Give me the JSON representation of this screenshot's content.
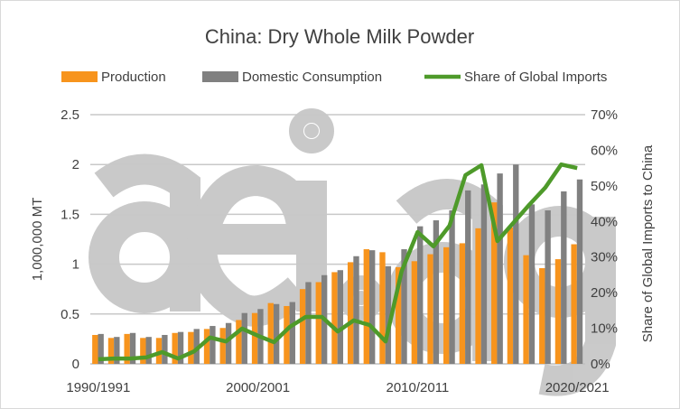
{
  "chart_data": {
    "type": "bar",
    "title": "China: Dry Whole Milk Powder",
    "ylabel": "1,000,000 MT",
    "y2label": "Share of Global Imports to China",
    "ylim": [
      0,
      2.5
    ],
    "y2lim": [
      0,
      0.7
    ],
    "yticks": [
      "0",
      "0.5",
      "1",
      "1.5",
      "2",
      "2.5"
    ],
    "y2ticks": [
      "0%",
      "10%",
      "20%",
      "30%",
      "40%",
      "50%",
      "60%",
      "70%"
    ],
    "xtick_labels": [
      "1990/1991",
      "2000/2001",
      "2010/2011",
      "2020/2021"
    ],
    "grid": true,
    "legend_position": "top",
    "watermark": "aei.ag",
    "categories": [
      "1990/1991",
      "1991/1992",
      "1992/1993",
      "1993/1994",
      "1994/1995",
      "1995/1996",
      "1996/1997",
      "1997/1998",
      "1998/1999",
      "1999/2000",
      "2000/2001",
      "2001/2002",
      "2002/2003",
      "2003/2004",
      "2004/2005",
      "2005/2006",
      "2006/2007",
      "2007/2008",
      "2008/2009",
      "2009/2010",
      "2010/2011",
      "2011/2012",
      "2012/2013",
      "2013/2014",
      "2014/2015",
      "2015/2016",
      "2016/2017",
      "2017/2018",
      "2018/2019",
      "2019/2020",
      "2020/2021"
    ],
    "series": [
      {
        "name": "Production",
        "type": "bar",
        "axis": "left",
        "color": "#F7941D",
        "values": [
          0.29,
          0.26,
          0.3,
          0.26,
          0.26,
          0.31,
          0.32,
          0.35,
          0.36,
          0.44,
          0.51,
          0.61,
          0.58,
          0.75,
          0.82,
          0.92,
          1.02,
          1.15,
          1.12,
          0.97,
          1.03,
          1.1,
          1.17,
          1.21,
          1.36,
          1.62,
          1.37,
          1.09,
          0.96,
          1.05,
          1.2
        ]
      },
      {
        "name": "Domestic Consumption",
        "type": "bar",
        "axis": "left",
        "color": "#808080",
        "values": [
          0.3,
          0.27,
          0.31,
          0.27,
          0.29,
          0.32,
          0.35,
          0.38,
          0.41,
          0.51,
          0.55,
          0.6,
          0.62,
          0.82,
          0.89,
          0.94,
          1.08,
          1.14,
          0.98,
          1.15,
          1.38,
          1.44,
          1.54,
          1.74,
          1.8,
          1.91,
          2.0,
          1.6,
          1.54,
          1.73,
          1.85
        ]
      },
      {
        "name": "Share of Global Imports",
        "type": "line",
        "axis": "right",
        "color": "#4E9A2A",
        "values": [
          0.013,
          0.015,
          0.015,
          0.018,
          0.033,
          0.015,
          0.035,
          0.074,
          0.063,
          0.099,
          0.079,
          0.061,
          0.104,
          0.132,
          0.132,
          0.091,
          0.122,
          0.109,
          0.063,
          0.26,
          0.37,
          0.33,
          0.388,
          0.53,
          0.558,
          0.345,
          0.396,
          0.447,
          0.495,
          0.56,
          0.55
        ]
      }
    ]
  }
}
